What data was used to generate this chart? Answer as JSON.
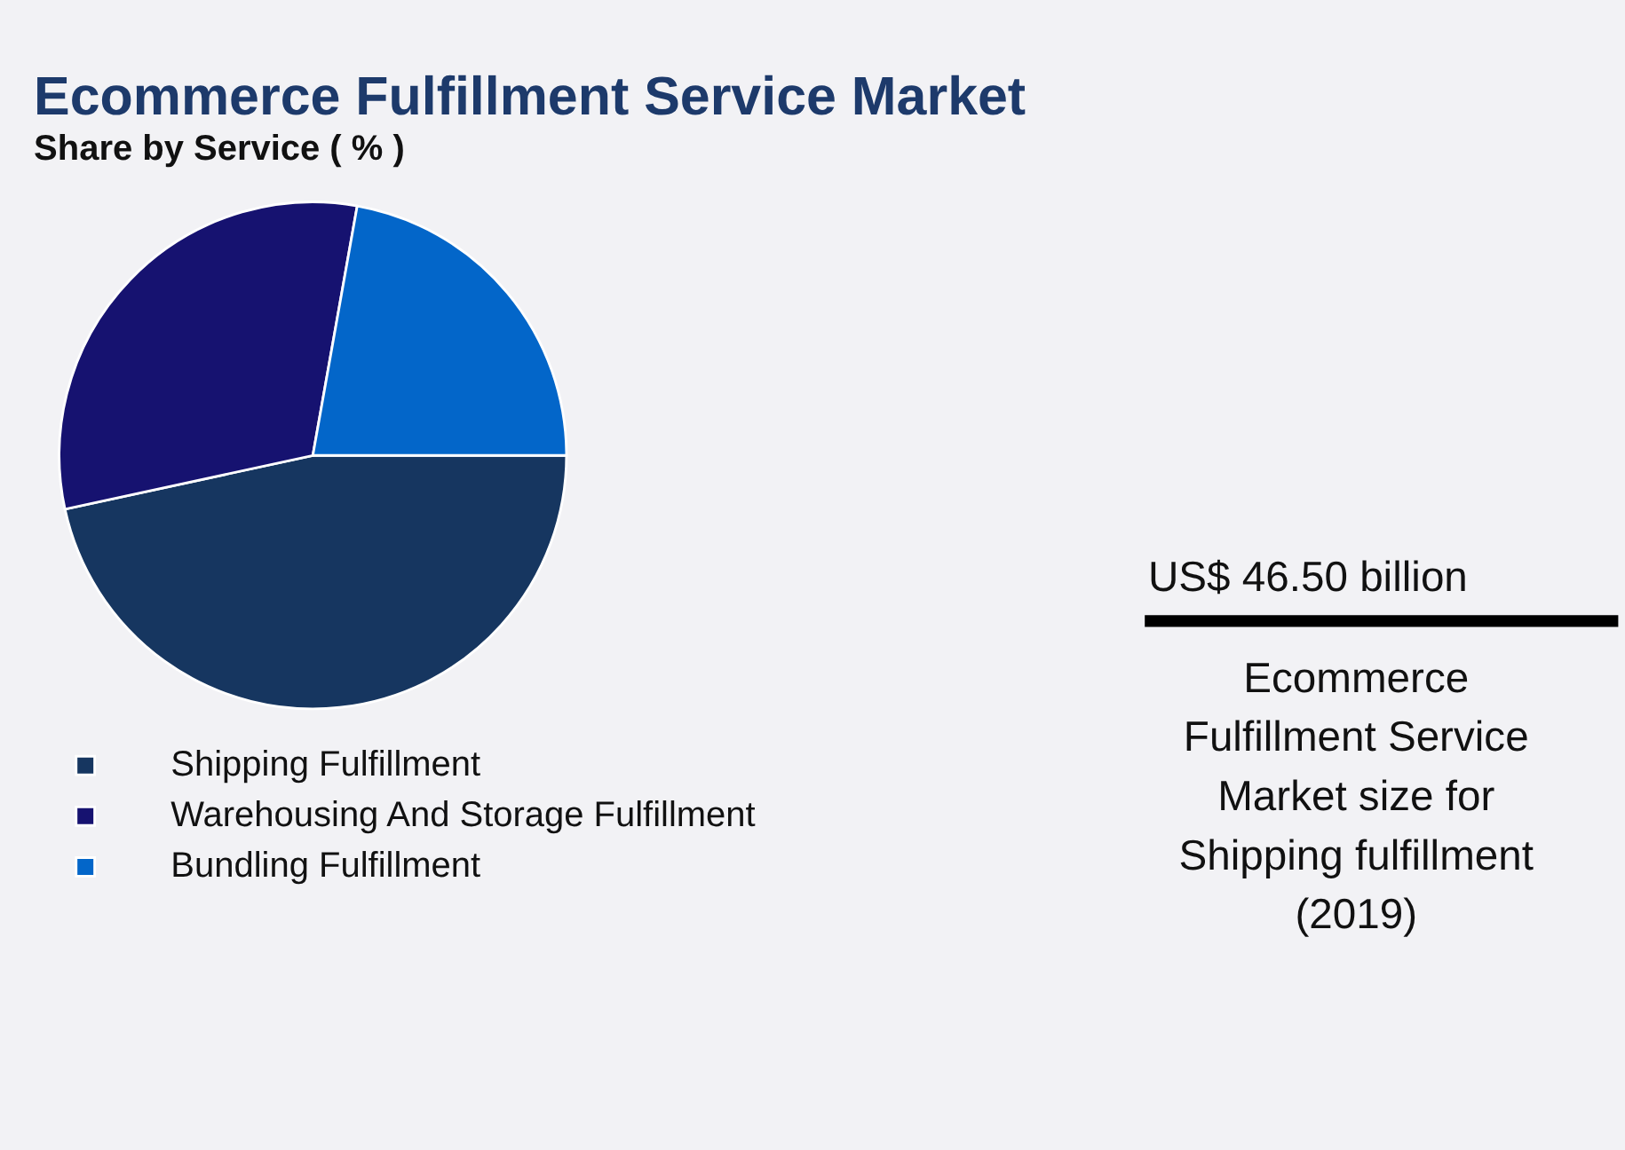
{
  "chart_data": [
    {
      "type": "pie",
      "title": "Ecommerce Fulfillment Service Market",
      "subtitle": "Share by Service ( % )",
      "categories": [
        "Shipping Fulfillment",
        "Warehousing And Storage Fulfillment",
        "Bundling Fulfillment"
      ],
      "values": [
        46.6,
        31.2,
        22.2
      ],
      "colors": [
        "#163660",
        "#161270",
        "#0366c9"
      ],
      "legend": "bottom"
    },
    {
      "type": "other",
      "title": "US$ 46.50 billion",
      "annotations": [
        "Ecommerce Fulfillment Service Market size for Shipping fulfillment (2019)"
      ]
    }
  ]
}
